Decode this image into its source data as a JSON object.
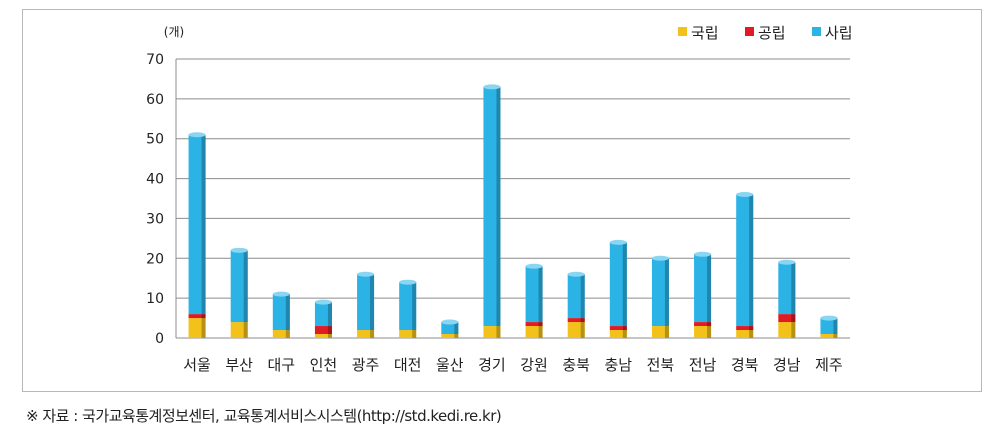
{
  "chart_data": {
    "type": "bar",
    "stacked": true,
    "unit_label": "(개)",
    "categories": [
      "서울",
      "부산",
      "대구",
      "인천",
      "광주",
      "대전",
      "울산",
      "경기",
      "강원",
      "충북",
      "충남",
      "전북",
      "전남",
      "경북",
      "경남",
      "제주"
    ],
    "series": [
      {
        "name": "국립",
        "color": "#f2c21b",
        "values": [
          5,
          4,
          2,
          1,
          2,
          2,
          1,
          3,
          3,
          4,
          2,
          3,
          3,
          2,
          4,
          1
        ]
      },
      {
        "name": "공립",
        "color": "#e01b23",
        "values": [
          1,
          0,
          0,
          2,
          0,
          0,
          0,
          0,
          1,
          1,
          1,
          0,
          1,
          1,
          2,
          0
        ]
      },
      {
        "name": "사립",
        "color": "#2bb3e6",
        "values": [
          45,
          18,
          9,
          6,
          14,
          12,
          3,
          60,
          14,
          11,
          21,
          17,
          17,
          33,
          13,
          4
        ]
      }
    ],
    "ylim": [
      0,
      70
    ],
    "yticks": [
      0,
      10,
      20,
      30,
      40,
      50,
      60,
      70
    ],
    "grid": true,
    "legend_position": "top-right"
  },
  "footer": {
    "source": "※  자료 : 국가교육통계정보센터,  교육통계서비스시스템(http://std.kedi.re.kr)"
  }
}
